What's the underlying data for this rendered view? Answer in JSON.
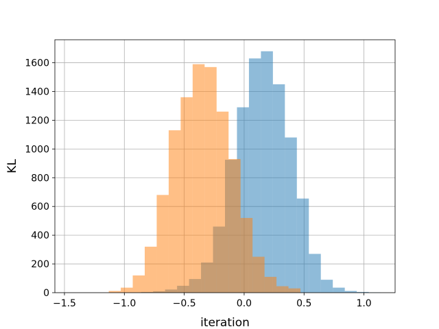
{
  "chart_data": {
    "type": "histogram",
    "title": "",
    "xlabel": "iteration",
    "ylabel": "KL",
    "xlim": [
      -1.58,
      1.26
    ],
    "ylim": [
      0,
      1760
    ],
    "grid": true,
    "xticks": [
      -1.5,
      -1.0,
      -0.5,
      0.0,
      0.5,
      1.0
    ],
    "xtick_labels": [
      "−1.5",
      "−1.0",
      "−0.5",
      "0.0",
      "0.5",
      "1.0"
    ],
    "yticks": [
      0,
      200,
      400,
      600,
      800,
      1000,
      1200,
      1400,
      1600
    ],
    "ytick_labels": [
      "0",
      "200",
      "400",
      "600",
      "800",
      "1000",
      "1200",
      "1400",
      "1600"
    ],
    "series": [
      {
        "color": "#1f77b4",
        "opacity": 0.5,
        "bin_edges": [
          -1.36,
          -1.26,
          -1.16,
          -1.06,
          -0.96,
          -0.86,
          -0.76,
          -0.66,
          -0.56,
          -0.46,
          -0.36,
          -0.26,
          -0.16,
          -0.06,
          0.04,
          0.14,
          0.24,
          0.34,
          0.44,
          0.54,
          0.64,
          0.74,
          0.84,
          0.94,
          1.04,
          1.14
        ],
        "counts": [
          0,
          0,
          0,
          1,
          2,
          5,
          10,
          22,
          48,
          95,
          210,
          460,
          925,
          1290,
          1630,
          1680,
          1450,
          1080,
          655,
          270,
          90,
          35,
          12,
          5,
          2
        ]
      },
      {
        "color": "#ff7f0e",
        "opacity": 0.5,
        "bin_edges": [
          -1.13,
          -1.03,
          -0.93,
          -0.83,
          -0.73,
          -0.63,
          -0.53,
          -0.43,
          -0.33,
          -0.23,
          -0.13,
          -0.03,
          0.07,
          0.17,
          0.27,
          0.37,
          0.47
        ],
        "counts": [
          12,
          35,
          120,
          320,
          680,
          1130,
          1360,
          1590,
          1570,
          1260,
          930,
          520,
          250,
          110,
          45,
          30
        ]
      }
    ]
  }
}
